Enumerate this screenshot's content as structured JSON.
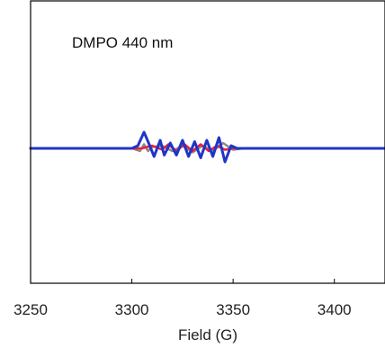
{
  "chart_data": {
    "type": "line",
    "title": "",
    "annotation": "DMPO 440 nm",
    "xlabel": "Field (G)",
    "ylabel": "",
    "xlim": [
      3250,
      3425
    ],
    "ylim": [
      -1,
      1
    ],
    "x_ticks": [
      3250,
      3300,
      3350,
      3400
    ],
    "x_tick_labels": [
      "3250",
      "3300",
      "3350",
      "3400"
    ],
    "grid": false,
    "legend": "none",
    "series": [
      {
        "color": "#8a8a8a",
        "x": [
          3250,
          3300,
          3304,
          3306,
          3308,
          3310,
          3315,
          3320,
          3325,
          3330,
          3335,
          3340,
          3345,
          3348,
          3350,
          3355,
          3425
        ],
        "y": [
          0,
          0,
          -0.02,
          0.03,
          -0.02,
          0.01,
          0.02,
          -0.02,
          0.02,
          -0.03,
          0.02,
          -0.02,
          0.04,
          0.01,
          -0.01,
          0,
          0
        ]
      },
      {
        "color": "#e8213b",
        "x": [
          3250,
          3305,
          3310,
          3315,
          3318,
          3322,
          3326,
          3330,
          3334,
          3338,
          3342,
          3346,
          3350,
          3425
        ],
        "y": [
          0,
          0,
          0.02,
          -0.01,
          0.03,
          -0.02,
          0.03,
          -0.02,
          0.03,
          -0.02,
          0.02,
          -0.01,
          0,
          0
        ]
      },
      {
        "color": "#1f35c8",
        "x": [
          3250,
          3300,
          3303,
          3306,
          3308,
          3311,
          3314,
          3316,
          3319,
          3322,
          3325,
          3328,
          3331,
          3334,
          3337,
          3340,
          3343,
          3346,
          3349,
          3352,
          3356,
          3425
        ],
        "y": [
          0,
          0,
          0.02,
          0.12,
          0.05,
          -0.06,
          0.06,
          -0.05,
          0.04,
          -0.05,
          0.06,
          -0.06,
          0.05,
          -0.07,
          0.06,
          -0.06,
          0.08,
          -0.1,
          0.02,
          0,
          0,
          0
        ]
      }
    ]
  }
}
